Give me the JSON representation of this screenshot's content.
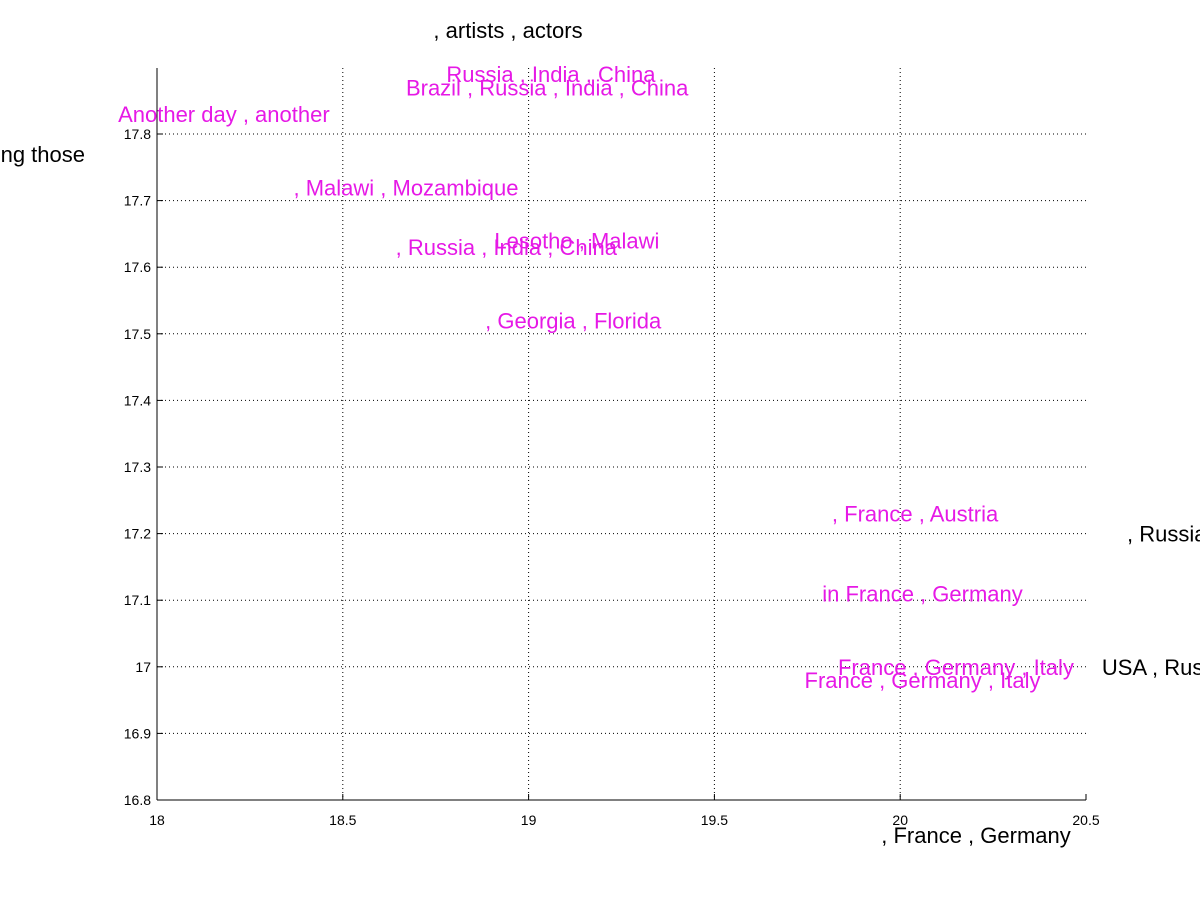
{
  "chart_data": {
    "type": "scatter",
    "title": ", artists , actors",
    "xlabel": ", France , Germany",
    "ylabel": "ng those",
    "xlim": [
      18,
      20.5
    ],
    "ylim": [
      16.8,
      17.9
    ],
    "grid": true,
    "x_ticks": [
      "18",
      "18.5",
      "19",
      "19.5",
      "20",
      "20.5"
    ],
    "y_ticks": [
      "16.8",
      "16.9",
      "17",
      "17.1",
      "17.2",
      "17.3",
      "17.4",
      "17.5",
      "17.6",
      "17.7",
      "17.8"
    ],
    "label_color": "#e619e6",
    "points": [
      {
        "label": "Russia , India , China",
        "x": 19.06,
        "y": 17.89
      },
      {
        "label": "Brazil , Russia , India , China",
        "x": 19.05,
        "y": 17.87
      },
      {
        "label": "Lesotho , Malawi",
        "x": 19.13,
        "y": 17.64
      },
      {
        "label": ", Russia , India , China",
        "x": 18.94,
        "y": 17.63
      },
      {
        "label": "Another day , another",
        "x": 18.18,
        "y": 17.83
      },
      {
        "label": ", Malawi , Mozambique",
        "x": 18.67,
        "y": 17.72
      },
      {
        "label": ", Georgia , Florida",
        "x": 19.12,
        "y": 17.52
      },
      {
        "label": ", France , Austria",
        "x": 20.04,
        "y": 17.23
      },
      {
        "label": "in France , Germany",
        "x": 20.06,
        "y": 17.11
      },
      {
        "label": "France , Germany , Italy",
        "x": 20.15,
        "y": 17.0
      },
      {
        "label": "France , Germany , Italy",
        "x": 20.06,
        "y": 16.98
      }
    ],
    "overflow_labels": [
      {
        "label": "USA , Russia , F",
        "x": 20.76,
        "y": 17.0
      },
      {
        "label": ", Russia , Fr",
        "x": 20.77,
        "y": 17.2
      }
    ]
  }
}
